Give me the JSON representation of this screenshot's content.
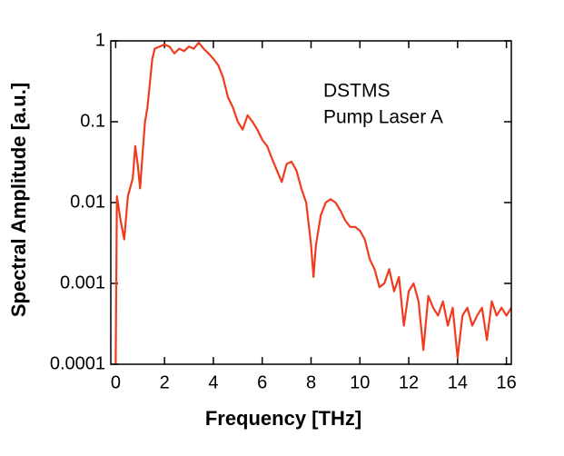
{
  "chart_data": {
    "type": "line",
    "xlabel": "Frequency [THz]",
    "ylabel": "Spectral Amplitude [a.u.]",
    "annotations": [
      "DSTMS",
      "Pump Laser A"
    ],
    "color": "#f03c1e",
    "yscale": "log",
    "xlim": [
      -0.2,
      16.2
    ],
    "ylim": [
      0.0001,
      1
    ],
    "xticks": [
      0,
      2,
      4,
      6,
      8,
      10,
      12,
      14,
      16
    ],
    "yticks": [
      0.0001,
      0.001,
      0.01,
      0.1,
      1
    ],
    "x": [
      0,
      0.05,
      0.2,
      0.35,
      0.5,
      0.7,
      0.8,
      0.9,
      1.0,
      1.1,
      1.2,
      1.3,
      1.4,
      1.5,
      1.6,
      1.8,
      2.0,
      2.2,
      2.4,
      2.6,
      2.8,
      3.0,
      3.2,
      3.4,
      3.6,
      3.8,
      4.0,
      4.2,
      4.4,
      4.6,
      4.8,
      5.0,
      5.2,
      5.4,
      5.6,
      5.8,
      6.0,
      6.2,
      6.4,
      6.6,
      6.8,
      7.0,
      7.2,
      7.4,
      7.6,
      7.8,
      8.0,
      8.1,
      8.2,
      8.4,
      8.6,
      8.8,
      9.0,
      9.2,
      9.4,
      9.6,
      9.8,
      10.0,
      10.2,
      10.4,
      10.6,
      10.8,
      11.0,
      11.2,
      11.4,
      11.6,
      11.8,
      12.0,
      12.2,
      12.4,
      12.6,
      12.8,
      13.0,
      13.2,
      13.4,
      13.6,
      13.8,
      14.0,
      14.2,
      14.4,
      14.6,
      14.8,
      15.0,
      15.2,
      15.4,
      15.6,
      15.8,
      16.0,
      16.2
    ],
    "values": [
      0.0001,
      0.012,
      0.006,
      0.0035,
      0.012,
      0.02,
      0.05,
      0.03,
      0.015,
      0.04,
      0.1,
      0.15,
      0.3,
      0.6,
      0.8,
      0.85,
      0.9,
      0.85,
      0.7,
      0.8,
      0.75,
      0.85,
      0.8,
      0.95,
      0.8,
      0.7,
      0.6,
      0.5,
      0.35,
      0.2,
      0.15,
      0.1,
      0.08,
      0.12,
      0.1,
      0.08,
      0.06,
      0.05,
      0.035,
      0.025,
      0.018,
      0.03,
      0.032,
      0.025,
      0.015,
      0.01,
      0.003,
      0.0012,
      0.003,
      0.007,
      0.01,
      0.011,
      0.01,
      0.008,
      0.006,
      0.005,
      0.005,
      0.0045,
      0.0035,
      0.002,
      0.0015,
      0.0009,
      0.001,
      0.0015,
      0.0008,
      0.0012,
      0.0003,
      0.0008,
      0.001,
      0.0006,
      0.00015,
      0.0007,
      0.0005,
      0.0004,
      0.0006,
      0.0003,
      0.0005,
      0.00012,
      0.0004,
      0.0005,
      0.0003,
      0.0004,
      0.0005,
      0.0002,
      0.0006,
      0.0004,
      0.0005,
      0.0004,
      0.0005
    ]
  }
}
